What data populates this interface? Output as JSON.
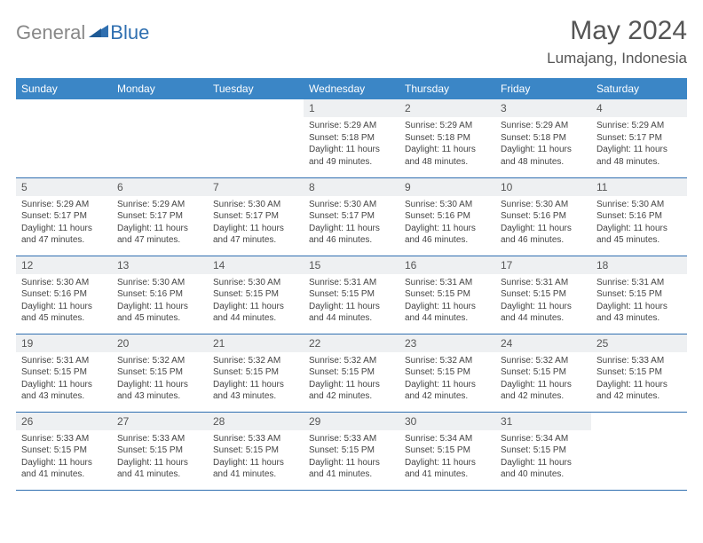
{
  "logo": {
    "text_gray": "General",
    "text_blue": "Blue",
    "icon_color": "#2f6fb0"
  },
  "title": "May 2024",
  "location": "Lumajang, Indonesia",
  "colors": {
    "header_bg": "#3b86c6",
    "header_text": "#ffffff",
    "daynum_bg": "#eef0f2",
    "border": "#2f6fb0",
    "body_text": "#444444"
  },
  "daynames": [
    "Sunday",
    "Monday",
    "Tuesday",
    "Wednesday",
    "Thursday",
    "Friday",
    "Saturday"
  ],
  "weeks": [
    [
      {
        "empty": true
      },
      {
        "empty": true
      },
      {
        "empty": true
      },
      {
        "day": "1",
        "sunrise": "5:29 AM",
        "sunset": "5:18 PM",
        "daylight": "11 hours and 49 minutes."
      },
      {
        "day": "2",
        "sunrise": "5:29 AM",
        "sunset": "5:18 PM",
        "daylight": "11 hours and 48 minutes."
      },
      {
        "day": "3",
        "sunrise": "5:29 AM",
        "sunset": "5:18 PM",
        "daylight": "11 hours and 48 minutes."
      },
      {
        "day": "4",
        "sunrise": "5:29 AM",
        "sunset": "5:17 PM",
        "daylight": "11 hours and 48 minutes."
      }
    ],
    [
      {
        "day": "5",
        "sunrise": "5:29 AM",
        "sunset": "5:17 PM",
        "daylight": "11 hours and 47 minutes."
      },
      {
        "day": "6",
        "sunrise": "5:29 AM",
        "sunset": "5:17 PM",
        "daylight": "11 hours and 47 minutes."
      },
      {
        "day": "7",
        "sunrise": "5:30 AM",
        "sunset": "5:17 PM",
        "daylight": "11 hours and 47 minutes."
      },
      {
        "day": "8",
        "sunrise": "5:30 AM",
        "sunset": "5:17 PM",
        "daylight": "11 hours and 46 minutes."
      },
      {
        "day": "9",
        "sunrise": "5:30 AM",
        "sunset": "5:16 PM",
        "daylight": "11 hours and 46 minutes."
      },
      {
        "day": "10",
        "sunrise": "5:30 AM",
        "sunset": "5:16 PM",
        "daylight": "11 hours and 46 minutes."
      },
      {
        "day": "11",
        "sunrise": "5:30 AM",
        "sunset": "5:16 PM",
        "daylight": "11 hours and 45 minutes."
      }
    ],
    [
      {
        "day": "12",
        "sunrise": "5:30 AM",
        "sunset": "5:16 PM",
        "daylight": "11 hours and 45 minutes."
      },
      {
        "day": "13",
        "sunrise": "5:30 AM",
        "sunset": "5:16 PM",
        "daylight": "11 hours and 45 minutes."
      },
      {
        "day": "14",
        "sunrise": "5:30 AM",
        "sunset": "5:15 PM",
        "daylight": "11 hours and 44 minutes."
      },
      {
        "day": "15",
        "sunrise": "5:31 AM",
        "sunset": "5:15 PM",
        "daylight": "11 hours and 44 minutes."
      },
      {
        "day": "16",
        "sunrise": "5:31 AM",
        "sunset": "5:15 PM",
        "daylight": "11 hours and 44 minutes."
      },
      {
        "day": "17",
        "sunrise": "5:31 AM",
        "sunset": "5:15 PM",
        "daylight": "11 hours and 44 minutes."
      },
      {
        "day": "18",
        "sunrise": "5:31 AM",
        "sunset": "5:15 PM",
        "daylight": "11 hours and 43 minutes."
      }
    ],
    [
      {
        "day": "19",
        "sunrise": "5:31 AM",
        "sunset": "5:15 PM",
        "daylight": "11 hours and 43 minutes."
      },
      {
        "day": "20",
        "sunrise": "5:32 AM",
        "sunset": "5:15 PM",
        "daylight": "11 hours and 43 minutes."
      },
      {
        "day": "21",
        "sunrise": "5:32 AM",
        "sunset": "5:15 PM",
        "daylight": "11 hours and 43 minutes."
      },
      {
        "day": "22",
        "sunrise": "5:32 AM",
        "sunset": "5:15 PM",
        "daylight": "11 hours and 42 minutes."
      },
      {
        "day": "23",
        "sunrise": "5:32 AM",
        "sunset": "5:15 PM",
        "daylight": "11 hours and 42 minutes."
      },
      {
        "day": "24",
        "sunrise": "5:32 AM",
        "sunset": "5:15 PM",
        "daylight": "11 hours and 42 minutes."
      },
      {
        "day": "25",
        "sunrise": "5:33 AM",
        "sunset": "5:15 PM",
        "daylight": "11 hours and 42 minutes."
      }
    ],
    [
      {
        "day": "26",
        "sunrise": "5:33 AM",
        "sunset": "5:15 PM",
        "daylight": "11 hours and 41 minutes."
      },
      {
        "day": "27",
        "sunrise": "5:33 AM",
        "sunset": "5:15 PM",
        "daylight": "11 hours and 41 minutes."
      },
      {
        "day": "28",
        "sunrise": "5:33 AM",
        "sunset": "5:15 PM",
        "daylight": "11 hours and 41 minutes."
      },
      {
        "day": "29",
        "sunrise": "5:33 AM",
        "sunset": "5:15 PM",
        "daylight": "11 hours and 41 minutes."
      },
      {
        "day": "30",
        "sunrise": "5:34 AM",
        "sunset": "5:15 PM",
        "daylight": "11 hours and 41 minutes."
      },
      {
        "day": "31",
        "sunrise": "5:34 AM",
        "sunset": "5:15 PM",
        "daylight": "11 hours and 40 minutes."
      },
      {
        "empty": true
      }
    ]
  ],
  "labels": {
    "sunrise_prefix": "Sunrise: ",
    "sunset_prefix": "Sunset: ",
    "daylight_prefix": "Daylight: "
  }
}
